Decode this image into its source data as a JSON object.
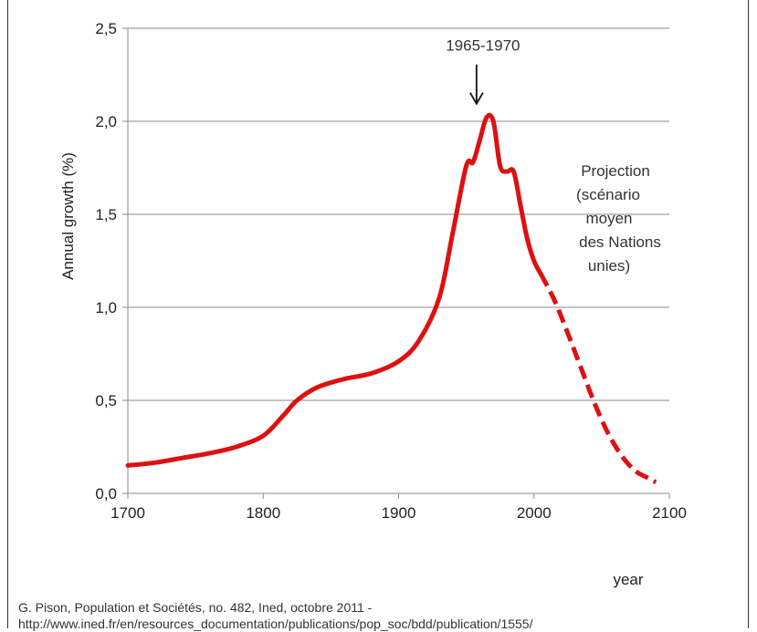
{
  "chart_data": {
    "type": "line",
    "title": "",
    "xlabel": "year",
    "ylabel": "Annual growth (%)",
    "xlim": [
      1700,
      2100
    ],
    "ylim": [
      0,
      2.5
    ],
    "x_ticks": [
      "1700",
      "1800",
      "1900",
      "2000",
      "2100"
    ],
    "y_ticks": [
      "0,0",
      "0,5",
      "1,0",
      "1,5",
      "2,0",
      "2,5"
    ],
    "grid": "horizontal",
    "colors": {
      "line": "#dd1111",
      "grid": "#8a8a8a"
    },
    "series": [
      {
        "style": "solid",
        "points": [
          [
            1700,
            0.15
          ],
          [
            1720,
            0.165
          ],
          [
            1740,
            0.19
          ],
          [
            1760,
            0.215
          ],
          [
            1780,
            0.25
          ],
          [
            1800,
            0.31
          ],
          [
            1815,
            0.42
          ],
          [
            1825,
            0.5
          ],
          [
            1840,
            0.57
          ],
          [
            1860,
            0.615
          ],
          [
            1880,
            0.645
          ],
          [
            1900,
            0.71
          ],
          [
            1915,
            0.82
          ],
          [
            1930,
            1.05
          ],
          [
            1940,
            1.4
          ],
          [
            1950,
            1.76
          ],
          [
            1955,
            1.78
          ],
          [
            1960,
            1.9
          ],
          [
            1965,
            2.02
          ],
          [
            1970,
            2.0
          ],
          [
            1975,
            1.76
          ],
          [
            1980,
            1.73
          ],
          [
            1985,
            1.73
          ],
          [
            1990,
            1.55
          ],
          [
            1995,
            1.37
          ],
          [
            2000,
            1.25
          ],
          [
            2005,
            1.18
          ]
        ]
      },
      {
        "style": "dashed",
        "points": [
          [
            2005,
            1.18
          ],
          [
            2015,
            1.04
          ],
          [
            2025,
            0.86
          ],
          [
            2035,
            0.67
          ],
          [
            2045,
            0.48
          ],
          [
            2055,
            0.32
          ],
          [
            2065,
            0.2
          ],
          [
            2075,
            0.12
          ],
          [
            2085,
            0.08
          ],
          [
            2090,
            0.06
          ]
        ]
      }
    ],
    "annotations": [
      {
        "text": "1965-1970",
        "x": 1965,
        "y": 2.07,
        "arrow": true
      }
    ],
    "projection_note": [
      "Projection",
      "(scénario",
      "moyen",
      "des Nations",
      "unies)"
    ]
  },
  "source": {
    "line1": "G. Pison, Population et Sociétés, no. 482, Ined, octobre 2011 -",
    "line2": "http://www.ined.fr/en/resources_documentation/publications/pop_soc/bdd/publication/1555/"
  }
}
